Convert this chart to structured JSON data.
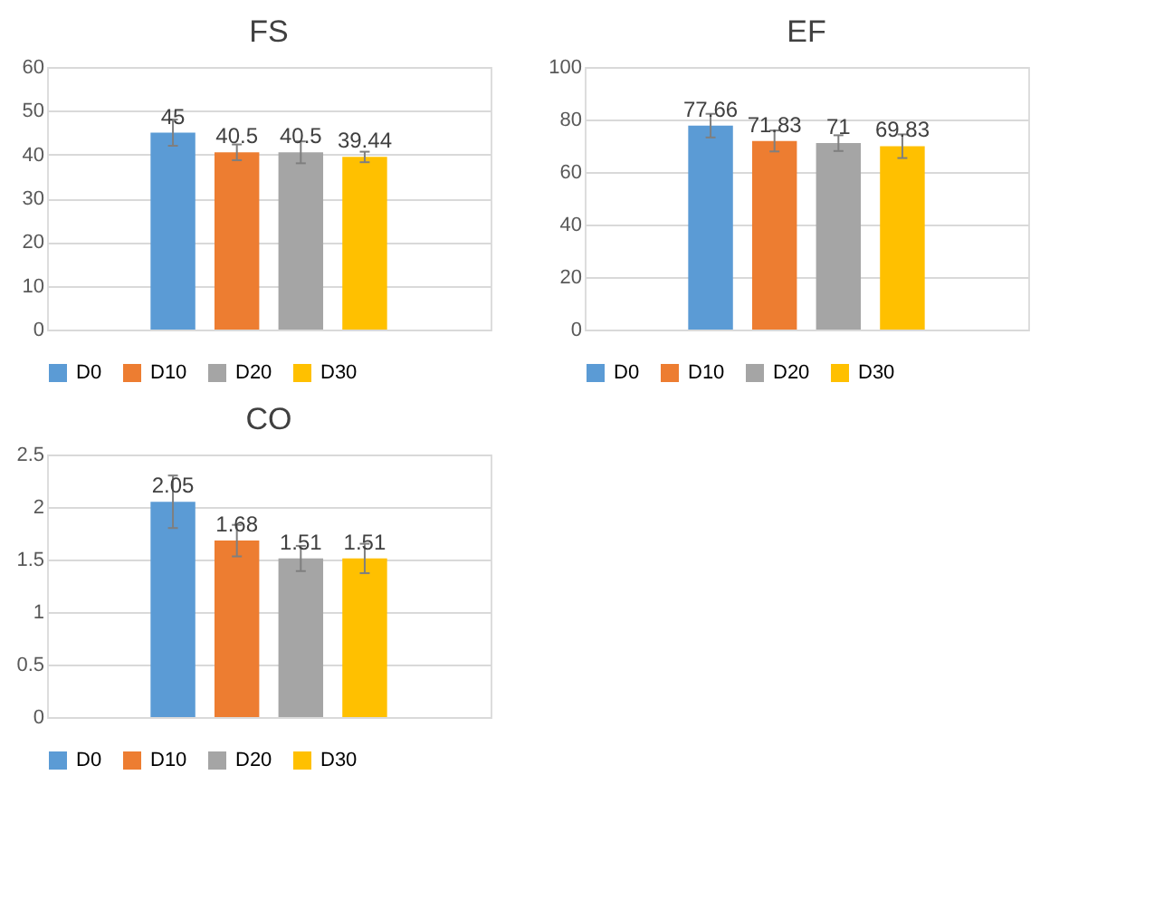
{
  "chart_data": [
    {
      "type": "bar",
      "title": "FS",
      "categories": [
        null
      ],
      "series": [
        {
          "name": "D0",
          "color": "#5b9bd5",
          "values": [
            45
          ],
          "errors": [
            3
          ]
        },
        {
          "name": "D10",
          "color": "#ed7d31",
          "values": [
            40.5
          ],
          "errors": [
            1.8
          ]
        },
        {
          "name": "D20",
          "color": "#a5a5a5",
          "values": [
            40.5
          ],
          "errors": [
            2.5
          ]
        },
        {
          "name": "D30",
          "color": "#ffc000",
          "values": [
            39.44
          ],
          "errors": [
            1.2
          ]
        }
      ],
      "ylim": [
        0,
        60
      ],
      "yticks": [
        0,
        10,
        20,
        30,
        40,
        50,
        60
      ],
      "grid": "y",
      "legend": "bottom",
      "data_labels": true
    },
    {
      "type": "bar",
      "title": "EF",
      "categories": [
        null
      ],
      "series": [
        {
          "name": "D0",
          "color": "#5b9bd5",
          "values": [
            77.66
          ],
          "errors": [
            4.5
          ]
        },
        {
          "name": "D10",
          "color": "#ed7d31",
          "values": [
            71.83
          ],
          "errors": [
            4
          ]
        },
        {
          "name": "D20",
          "color": "#a5a5a5",
          "values": [
            71
          ],
          "errors": [
            3
          ]
        },
        {
          "name": "D30",
          "color": "#ffc000",
          "values": [
            69.83
          ],
          "errors": [
            4.5
          ]
        }
      ],
      "ylim": [
        0,
        100
      ],
      "yticks": [
        0,
        20,
        40,
        60,
        80,
        100
      ],
      "grid": "y",
      "legend": "bottom",
      "data_labels": true
    },
    {
      "type": "bar",
      "title": "CO",
      "categories": [
        null
      ],
      "series": [
        {
          "name": "D0",
          "color": "#5b9bd5",
          "values": [
            2.05
          ],
          "errors": [
            0.25
          ]
        },
        {
          "name": "D10",
          "color": "#ed7d31",
          "values": [
            1.68
          ],
          "errors": [
            0.15
          ]
        },
        {
          "name": "D20",
          "color": "#a5a5a5",
          "values": [
            1.51
          ],
          "errors": [
            0.12
          ]
        },
        {
          "name": "D30",
          "color": "#ffc000",
          "values": [
            1.51
          ],
          "errors": [
            0.14
          ]
        }
      ],
      "ylim": [
        0,
        2.5
      ],
      "yticks": [
        0,
        0.5,
        1,
        1.5,
        2,
        2.5
      ],
      "grid": "y",
      "legend": "bottom",
      "data_labels": true
    }
  ]
}
